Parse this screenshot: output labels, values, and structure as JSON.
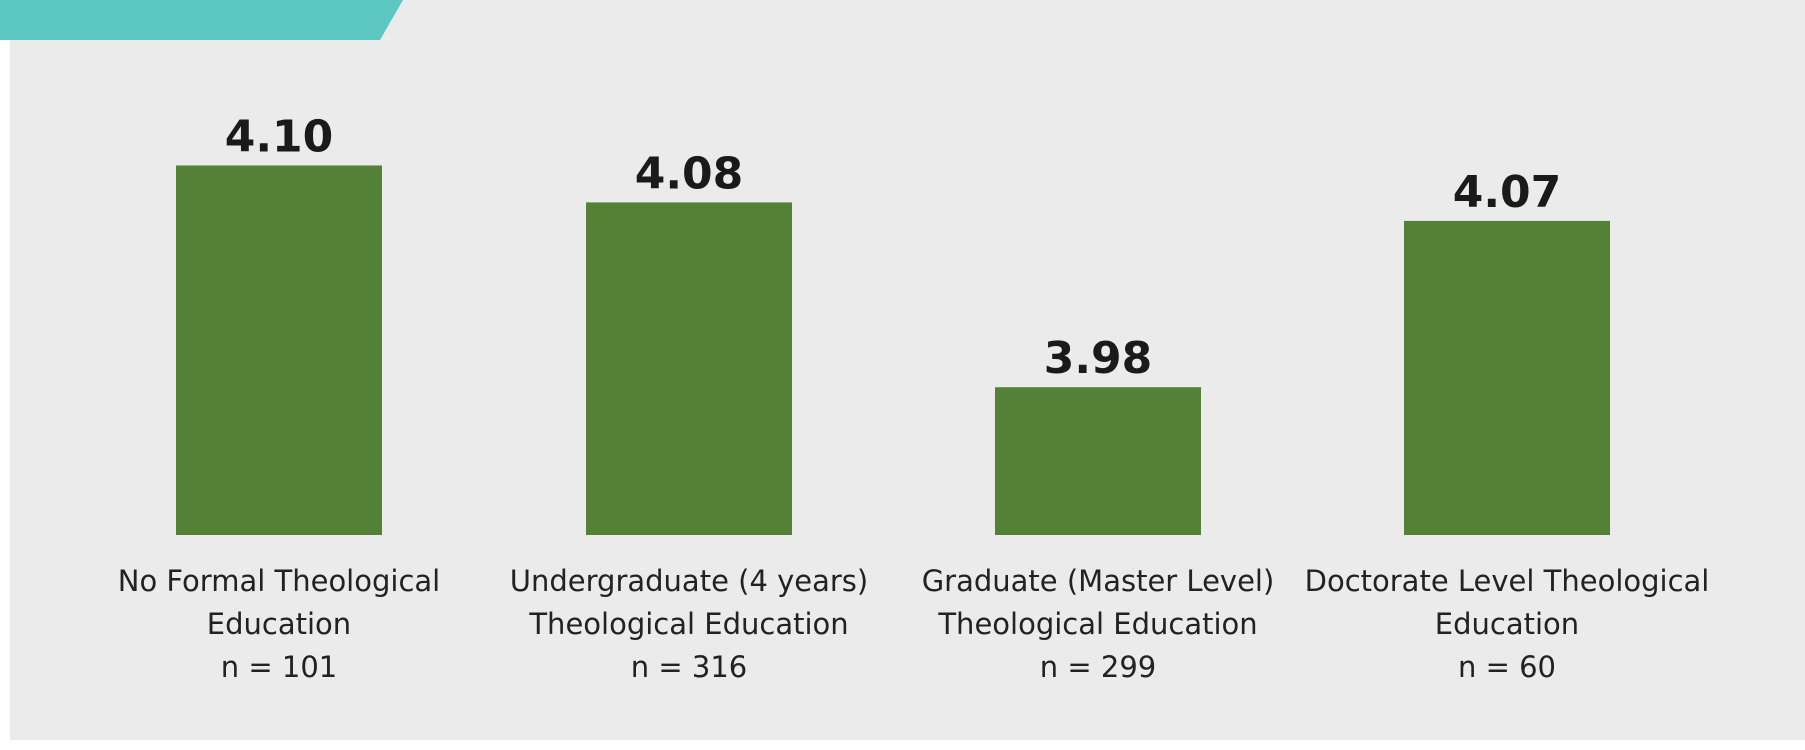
{
  "colors": {
    "page_background": "#ffffff",
    "panel_background": "#ebebeb",
    "accent_tab": "#5dc8c2",
    "bar": "#538135",
    "text": "#1a1a1a"
  },
  "chart_data": {
    "type": "bar",
    "title": "",
    "xlabel": "",
    "ylabel": "",
    "ylim": [
      3.9,
      4.11
    ],
    "grid": false,
    "categories": [
      "No Formal Theological Education",
      "Undergraduate (4 years) Theological Education",
      "Graduate (Master Level) Theological Education",
      "Doctorate Level Theological Education"
    ],
    "values": [
      4.1,
      4.08,
      3.98,
      4.07
    ],
    "value_labels": [
      "4.10",
      "4.08",
      "3.98",
      "4.07"
    ],
    "category_label_lines": [
      [
        "No Formal Theological",
        "Education",
        "n = 101"
      ],
      [
        "Undergraduate (4 years)",
        "Theological Education",
        "n = 316"
      ],
      [
        "Graduate (Master Level)",
        "Theological Education",
        "n = 299"
      ],
      [
        "Doctorate Level Theological",
        "Education",
        "n = 60"
      ]
    ]
  }
}
